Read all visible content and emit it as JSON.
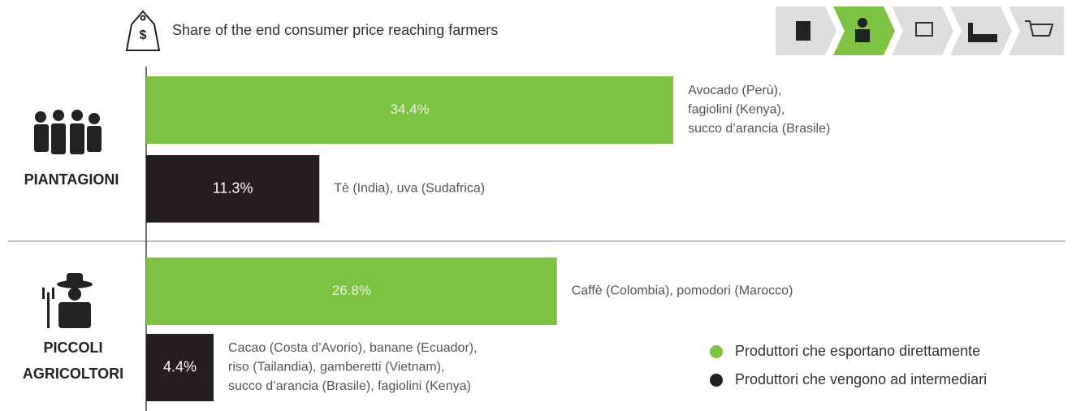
{
  "chart_data": {
    "type": "bar",
    "orientation": "horizontal",
    "title": "Share of the end consumer price reaching farmers",
    "groups": [
      "PIANTAGIONI",
      "PICCOLI AGRICOLTORI"
    ],
    "series": [
      {
        "name": "Produttori che esportano direttamente",
        "color": "#7dc242",
        "values": [
          34.4,
          26.8
        ],
        "value_labels": [
          "34.4%",
          "26.8%"
        ],
        "annotations": [
          [
            "Avocado (Perù),",
            "fagiolini (Kenya),",
            "succo d’arancia (Brasile)"
          ],
          [
            "Caffè (Colombia), pomodori (Marocco)"
          ]
        ]
      },
      {
        "name": "Produttori che vengono ad intermediari",
        "color": "#231f20",
        "values": [
          11.3,
          4.4
        ],
        "value_labels": [
          "11.3%",
          "4.4%"
        ],
        "annotations": [
          [
            "Tè (India), uva (Sudafrica)"
          ],
          [
            "Cacao (Costa d’Avorio), banane (Ecuador),",
            "riso (Tailandia), gamberetti (Vietnam),",
            "succo d’arancia (Brasile), fagiolini (Kenya)"
          ]
        ]
      }
    ],
    "legend": "bottom-right"
  }
}
